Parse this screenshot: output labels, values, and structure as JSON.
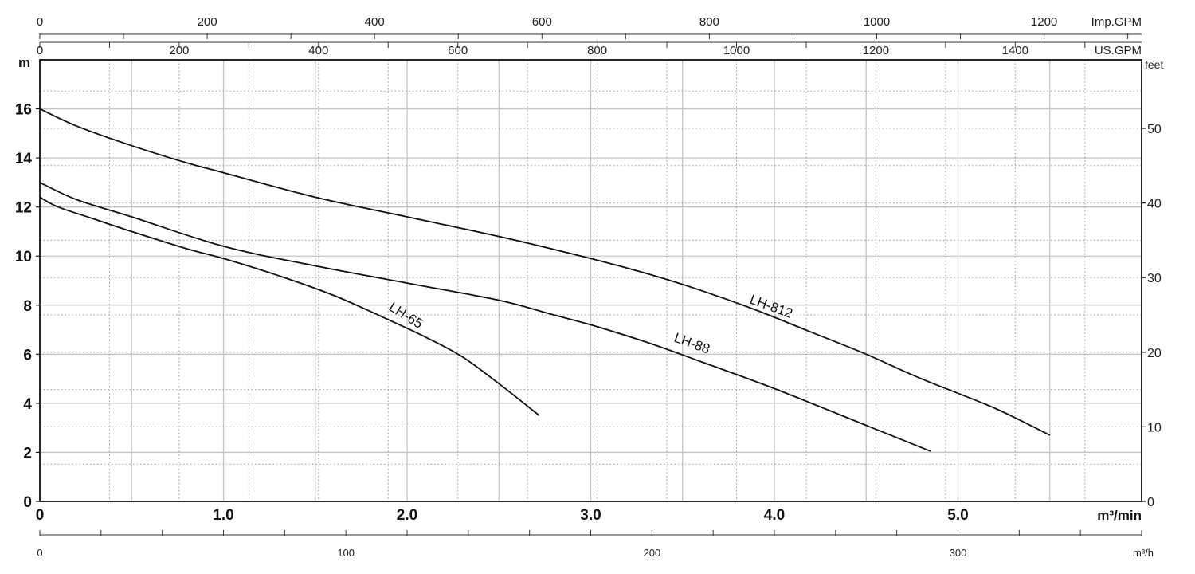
{
  "chart_data": {
    "type": "line",
    "title": "",
    "xlabel": "m³/min",
    "ylabel": "m",
    "xlim": [
      0,
      6.0
    ],
    "ylim": [
      0,
      18
    ],
    "grid": true,
    "legend": "inline labels on curves",
    "x_ticks": [
      "0",
      "1.0",
      "2.0",
      "3.0",
      "4.0",
      "5.0"
    ],
    "y_ticks": [
      "0",
      "2",
      "4",
      "6",
      "8",
      "10",
      "12",
      "14",
      "16"
    ],
    "x_unit_label": "m³/min",
    "y_unit_label": "m",
    "secondary_axes": {
      "imp_gpm": {
        "label": "Imp.GPM",
        "ticks": [
          "0",
          "200",
          "400",
          "600",
          "800",
          "1000",
          "1200"
        ]
      },
      "us_gpm": {
        "label": "US.GPM",
        "ticks": [
          "0",
          "200",
          "400",
          "600",
          "800",
          "1000",
          "1200",
          "1400"
        ]
      },
      "feet": {
        "label": "feet",
        "ticks": [
          "0",
          "10",
          "20",
          "30",
          "40",
          "50"
        ]
      },
      "m3h": {
        "label": "m³/h",
        "ticks": [
          "0",
          "100",
          "200",
          "300"
        ]
      }
    },
    "series": [
      {
        "name": "LH-812",
        "x": [
          0,
          0.2,
          0.5,
          0.8,
          1.0,
          1.5,
          2.0,
          2.5,
          3.0,
          3.3,
          3.6,
          3.9,
          4.2,
          4.5,
          4.8,
          5.2,
          5.5
        ],
        "y": [
          16.0,
          15.3,
          14.5,
          13.8,
          13.4,
          12.4,
          11.6,
          10.8,
          9.9,
          9.3,
          8.6,
          7.8,
          6.9,
          6.0,
          5.0,
          3.8,
          2.7
        ]
      },
      {
        "name": "LH-88",
        "x": [
          0,
          0.2,
          0.5,
          1.0,
          1.5,
          2.0,
          2.5,
          2.8,
          3.0,
          3.3,
          3.6,
          4.0,
          4.5,
          4.85
        ],
        "y": [
          13.0,
          12.3,
          11.6,
          10.4,
          9.6,
          8.9,
          8.2,
          7.6,
          7.2,
          6.5,
          5.7,
          4.6,
          3.1,
          2.05
        ]
      },
      {
        "name": "LH-65",
        "x": [
          0,
          0.1,
          0.3,
          0.5,
          0.8,
          1.0,
          1.3,
          1.6,
          1.9,
          2.1,
          2.3,
          2.5,
          2.72
        ],
        "y": [
          12.4,
          12.0,
          11.5,
          11.0,
          10.3,
          9.9,
          9.2,
          8.4,
          7.4,
          6.7,
          5.9,
          4.8,
          3.5
        ]
      }
    ],
    "annotations": [
      "LH-812",
      "LH-88",
      "LH-65"
    ]
  }
}
